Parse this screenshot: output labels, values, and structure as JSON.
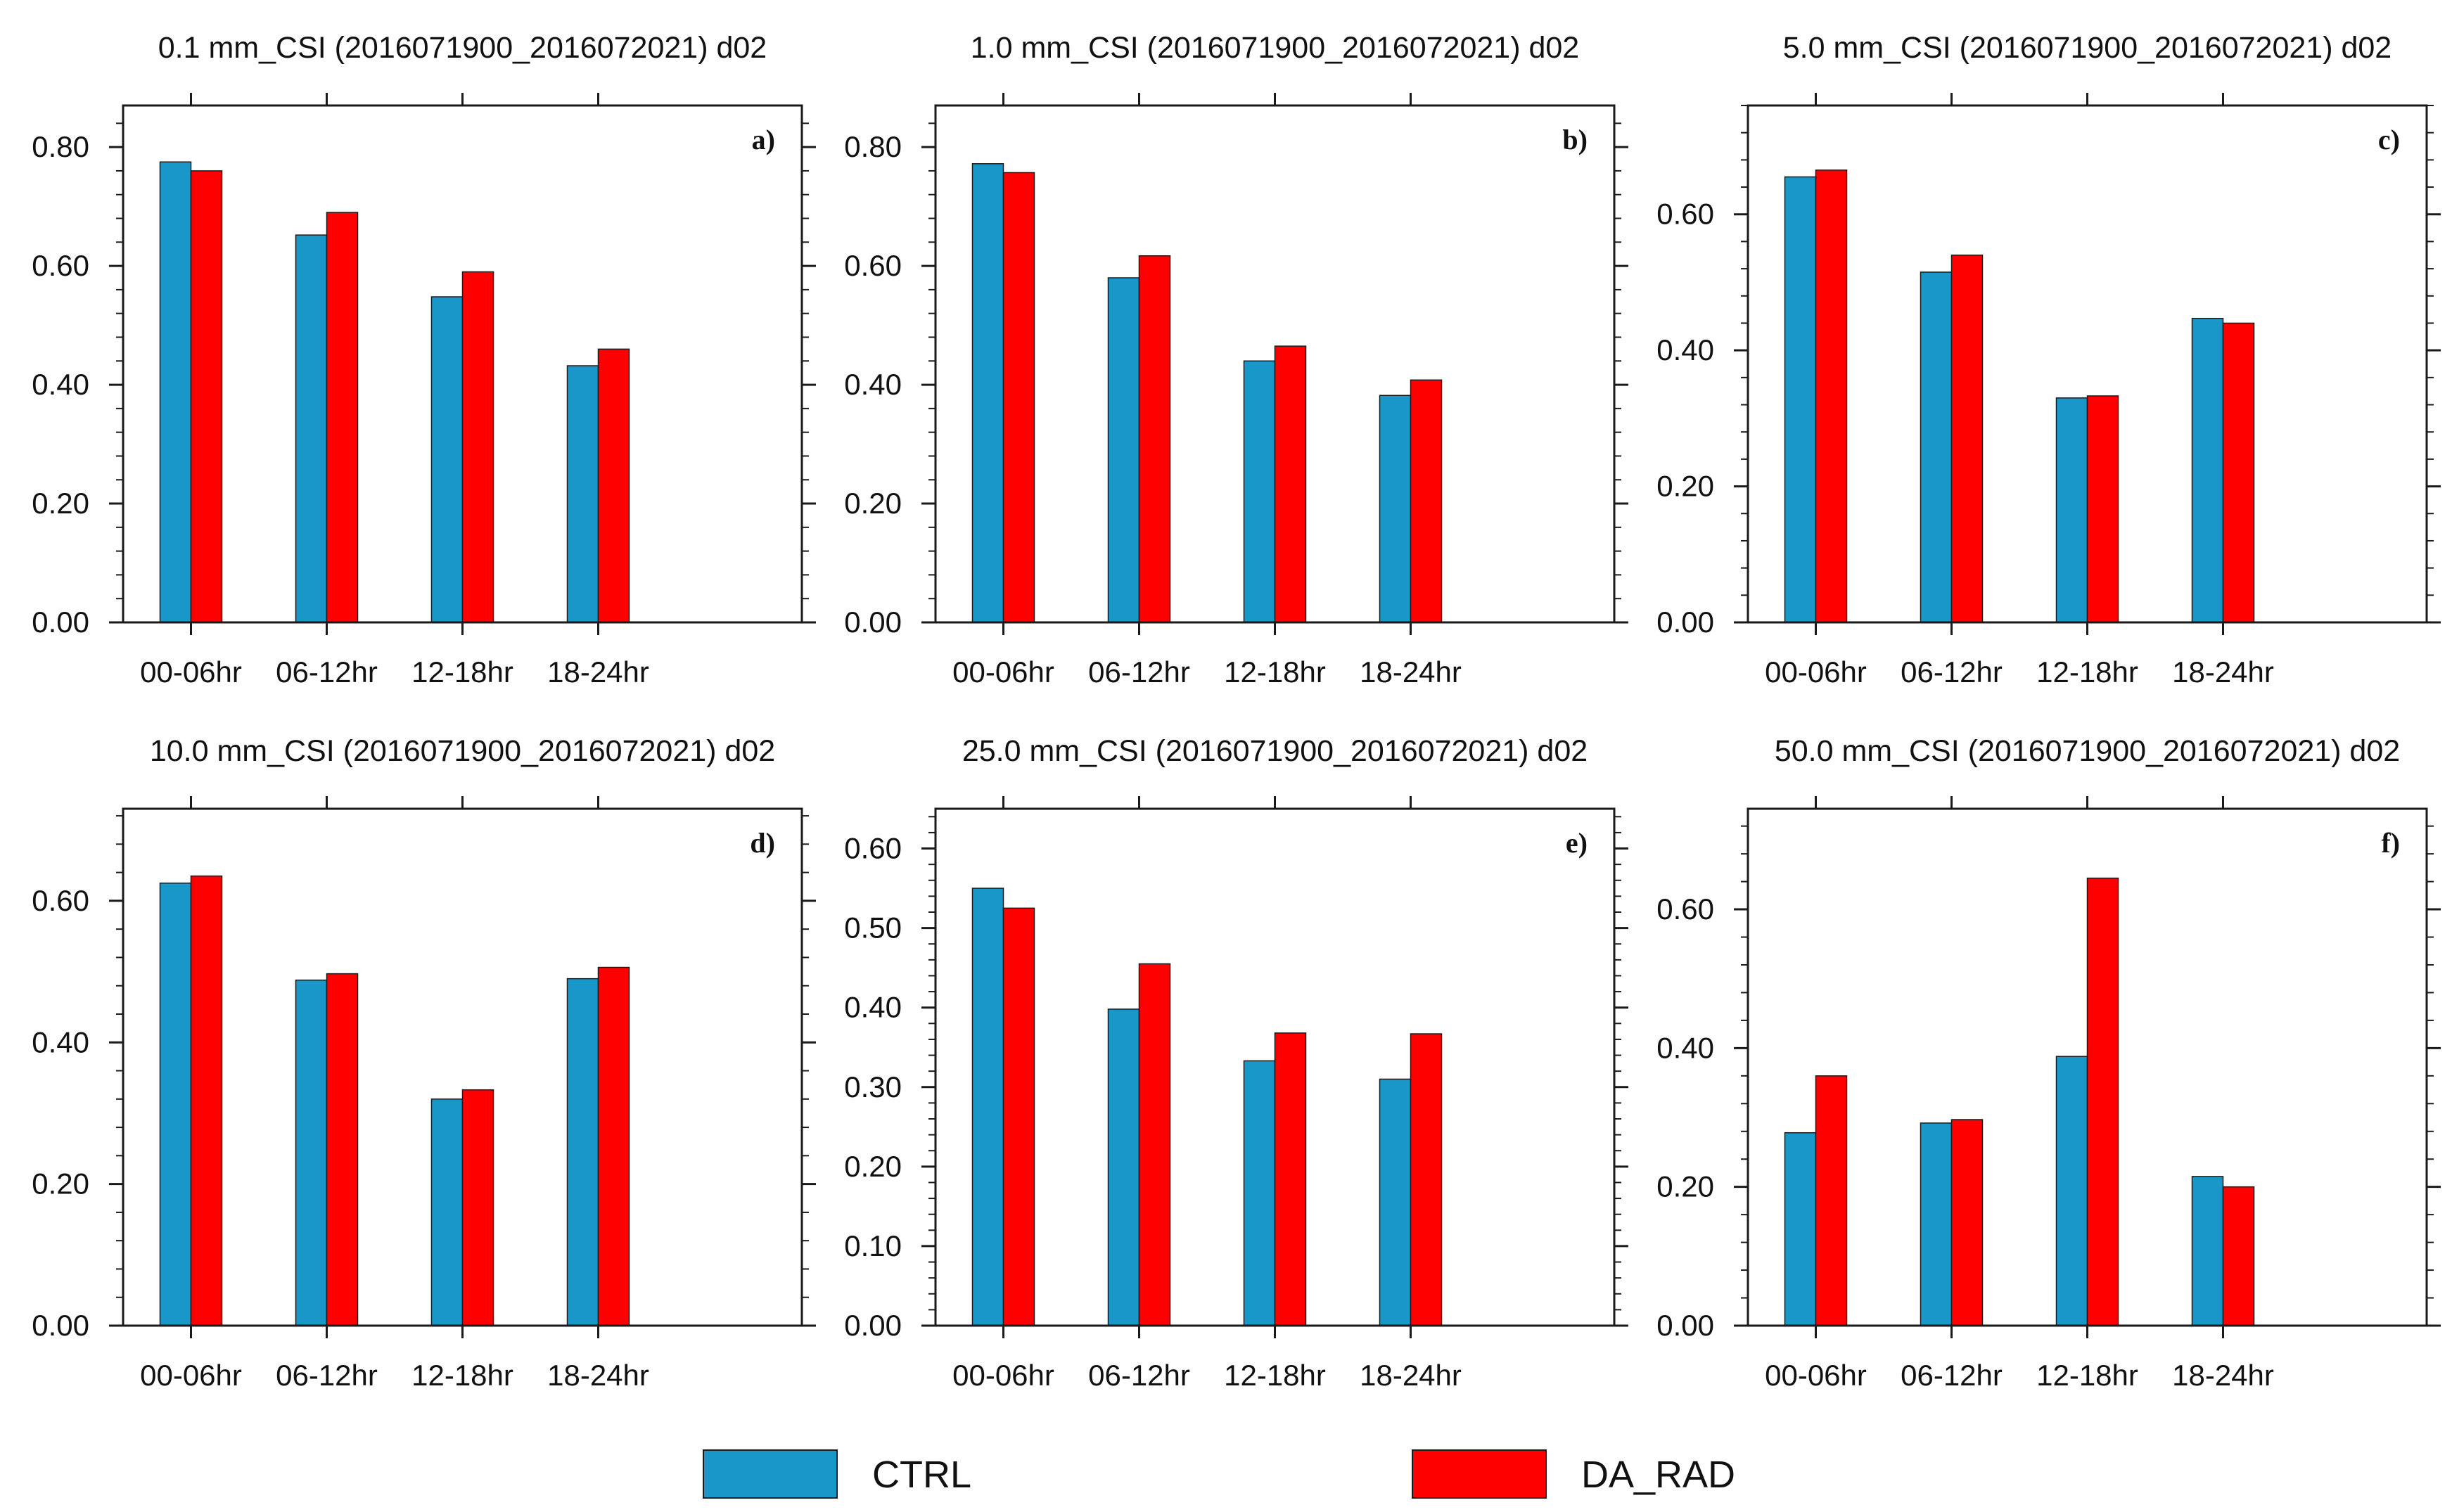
{
  "figure": {
    "legend": [
      {
        "name": "CTRL",
        "color": "#1a97c9"
      },
      {
        "name": "DA_RAD",
        "color": "#ff0000"
      }
    ]
  },
  "chart_data": [
    {
      "type": "bar",
      "panel": "a)",
      "title": "0.1 mm_CSI (2016071900_2016072021) d02",
      "categories": [
        "00-06hr",
        "06-12hr",
        "12-18hr",
        "18-24hr"
      ],
      "series": [
        {
          "name": "CTRL",
          "values": [
            0.775,
            0.652,
            0.548,
            0.432
          ]
        },
        {
          "name": "DA_RAD",
          "values": [
            0.76,
            0.69,
            0.59,
            0.46
          ]
        }
      ],
      "ylim": [
        0,
        0.87
      ],
      "yticks": [
        0.0,
        0.2,
        0.4,
        0.6,
        0.8
      ],
      "ytick_labels": [
        "0.00",
        "0.20",
        "0.40",
        "0.60",
        "0.80"
      ],
      "xlabel": "",
      "ylabel": ""
    },
    {
      "type": "bar",
      "panel": "b)",
      "title": "1.0 mm_CSI (2016071900_2016072021) d02",
      "categories": [
        "00-06hr",
        "06-12hr",
        "12-18hr",
        "18-24hr"
      ],
      "series": [
        {
          "name": "CTRL",
          "values": [
            0.772,
            0.58,
            0.44,
            0.382
          ]
        },
        {
          "name": "DA_RAD",
          "values": [
            0.757,
            0.617,
            0.465,
            0.408
          ]
        }
      ],
      "ylim": [
        0,
        0.87
      ],
      "yticks": [
        0.0,
        0.2,
        0.4,
        0.6,
        0.8
      ],
      "ytick_labels": [
        "0.00",
        "0.20",
        "0.40",
        "0.60",
        "0.80"
      ],
      "xlabel": "",
      "ylabel": ""
    },
    {
      "type": "bar",
      "panel": "c)",
      "title": "5.0 mm_CSI (2016071900_2016072021) d02",
      "categories": [
        "00-06hr",
        "06-12hr",
        "12-18hr",
        "18-24hr"
      ],
      "series": [
        {
          "name": "CTRL",
          "values": [
            0.655,
            0.515,
            0.33,
            0.447
          ]
        },
        {
          "name": "DA_RAD",
          "values": [
            0.665,
            0.54,
            0.333,
            0.44
          ]
        }
      ],
      "ylim": [
        0,
        0.76
      ],
      "yticks": [
        0.0,
        0.2,
        0.4,
        0.6
      ],
      "ytick_labels": [
        "0.00",
        "0.20",
        "0.40",
        "0.60"
      ],
      "xlabel": "",
      "ylabel": ""
    },
    {
      "type": "bar",
      "panel": "d)",
      "title": "10.0 mm_CSI (2016071900_2016072021) d02",
      "categories": [
        "00-06hr",
        "06-12hr",
        "12-18hr",
        "18-24hr"
      ],
      "series": [
        {
          "name": "CTRL",
          "values": [
            0.625,
            0.488,
            0.32,
            0.49
          ]
        },
        {
          "name": "DA_RAD",
          "values": [
            0.635,
            0.497,
            0.333,
            0.506
          ]
        }
      ],
      "ylim": [
        0,
        0.73
      ],
      "yticks": [
        0.0,
        0.2,
        0.4,
        0.6
      ],
      "ytick_labels": [
        "0.00",
        "0.20",
        "0.40",
        "0.60"
      ],
      "xlabel": "",
      "ylabel": ""
    },
    {
      "type": "bar",
      "panel": "e)",
      "title": "25.0 mm_CSI (2016071900_2016072021) d02",
      "categories": [
        "00-06hr",
        "06-12hr",
        "12-18hr",
        "18-24hr"
      ],
      "series": [
        {
          "name": "CTRL",
          "values": [
            0.55,
            0.398,
            0.333,
            0.31
          ]
        },
        {
          "name": "DA_RAD",
          "values": [
            0.525,
            0.455,
            0.368,
            0.367
          ]
        }
      ],
      "ylim": [
        0,
        0.65
      ],
      "yticks": [
        0.0,
        0.1,
        0.2,
        0.3,
        0.4,
        0.5,
        0.6
      ],
      "ytick_labels": [
        "0.00",
        "0.10",
        "0.20",
        "0.30",
        "0.40",
        "0.50",
        "0.60"
      ],
      "xlabel": "",
      "ylabel": ""
    },
    {
      "type": "bar",
      "panel": "f)",
      "title": "50.0 mm_CSI (2016071900_2016072021) d02",
      "categories": [
        "00-06hr",
        "06-12hr",
        "12-18hr",
        "18-24hr"
      ],
      "series": [
        {
          "name": "CTRL",
          "values": [
            0.278,
            0.292,
            0.388,
            0.215
          ]
        },
        {
          "name": "DA_RAD",
          "values": [
            0.36,
            0.297,
            0.645,
            0.2
          ]
        }
      ],
      "ylim": [
        0,
        0.745
      ],
      "yticks": [
        0.0,
        0.2,
        0.4,
        0.6
      ],
      "ytick_labels": [
        "0.00",
        "0.20",
        "0.40",
        "0.60"
      ],
      "xlabel": "",
      "ylabel": ""
    }
  ]
}
